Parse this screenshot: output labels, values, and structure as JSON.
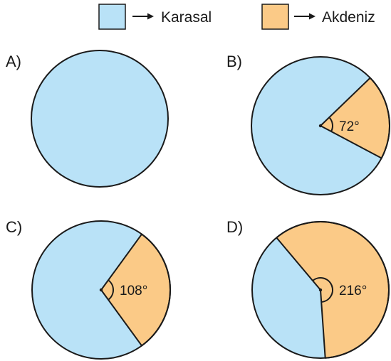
{
  "legend": [
    {
      "label": "Karasal",
      "color": "#b9e2f7"
    },
    {
      "label": "Akdeniz",
      "color": "#fbca87"
    }
  ],
  "arrow_icon": "right-arrow-icon",
  "options": [
    {
      "letter": "A)",
      "akdeniz_angle_deg": 0,
      "angle_label": ""
    },
    {
      "letter": "B)",
      "akdeniz_angle_deg": 72,
      "angle_label": "72°"
    },
    {
      "letter": "C)",
      "akdeniz_angle_deg": 108,
      "angle_label": "108°"
    },
    {
      "letter": "D)",
      "akdeniz_angle_deg": 216,
      "angle_label": "216°"
    }
  ],
  "colors": {
    "outline": "#1a1a1a",
    "karasal": "#b9e2f7",
    "akdeniz": "#fbca87"
  }
}
